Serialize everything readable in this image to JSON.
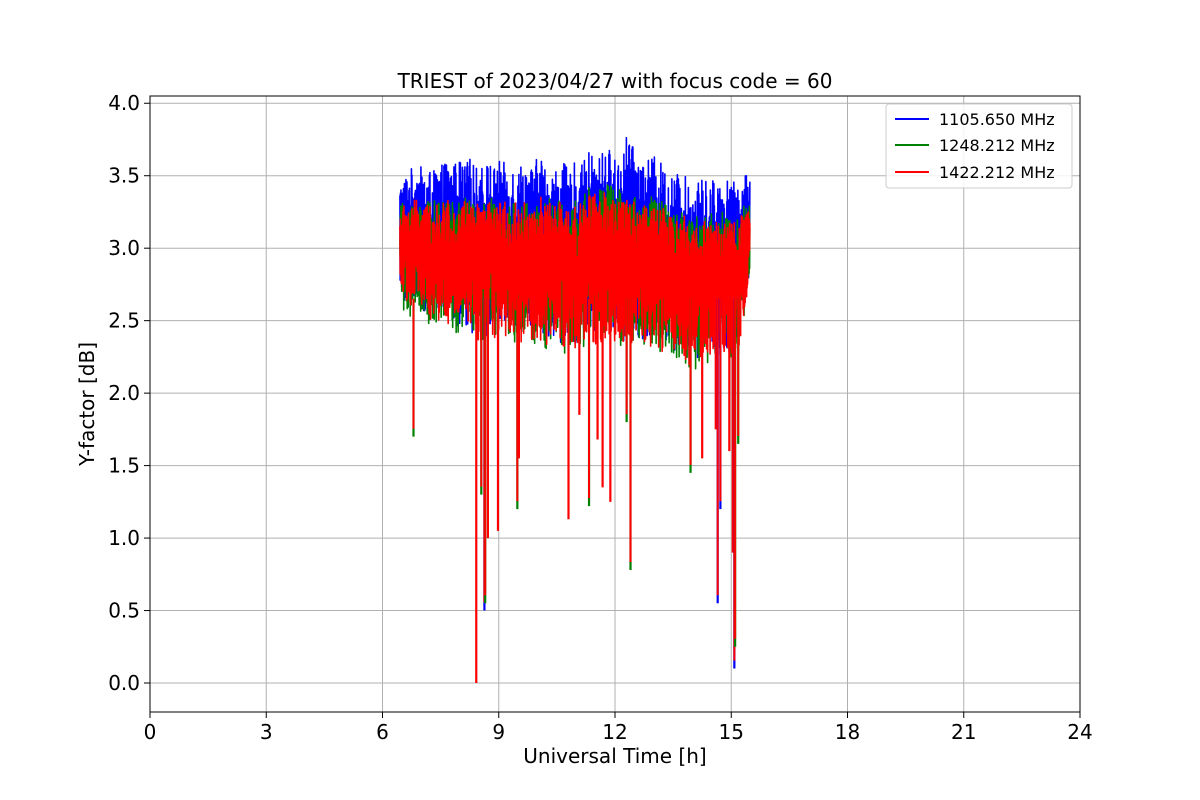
{
  "chart_data": {
    "type": "line",
    "title": "TRIEST of 2023/04/27 with focus code = 60",
    "xlabel": "Universal Time [h]",
    "ylabel": "Y-factor [dB]",
    "xlim": [
      0,
      24
    ],
    "ylim": [
      -0.2,
      4.05
    ],
    "xticks": [
      0,
      3,
      6,
      9,
      12,
      15,
      18,
      21,
      24
    ],
    "xtick_labels": [
      "0",
      "3",
      "6",
      "9",
      "12",
      "15",
      "18",
      "21",
      "24"
    ],
    "yticks": [
      0.0,
      0.5,
      1.0,
      1.5,
      2.0,
      2.5,
      3.0,
      3.5,
      4.0
    ],
    "ytick_labels": [
      "0.0",
      "0.5",
      "1.0",
      "1.5",
      "2.0",
      "2.5",
      "3.0",
      "3.5",
      "4.0"
    ],
    "grid": true,
    "legend_position": "top-right",
    "series": [
      {
        "name": "1105.650 MHz",
        "color": "#0000ff",
        "x": [
          6.45,
          6.55,
          6.62,
          6.7,
          6.78,
          6.84,
          6.92,
          7.0,
          7.1,
          7.2,
          7.3,
          7.4,
          7.5,
          7.6,
          7.7,
          7.8,
          7.9,
          8.0,
          8.1,
          8.2,
          8.3,
          8.38,
          8.44,
          8.5,
          8.58,
          8.64,
          8.7,
          8.8,
          8.88,
          8.96,
          9.04,
          9.12,
          9.2,
          9.3,
          9.4,
          9.46,
          9.52,
          9.6,
          9.7,
          9.8,
          9.9,
          10.0,
          10.1,
          10.16,
          10.22,
          10.3,
          10.4,
          10.5,
          10.6,
          10.7,
          10.8,
          10.86,
          10.92,
          11.0,
          11.1,
          11.2,
          11.3,
          11.36,
          11.42,
          11.5,
          11.6,
          11.7,
          11.8,
          11.9,
          12.0,
          12.1,
          12.2,
          12.3,
          12.38,
          12.42,
          12.5,
          12.6,
          12.7,
          12.8,
          12.9,
          13.0,
          13.1,
          13.2,
          13.3,
          13.4,
          13.5,
          13.6,
          13.7,
          13.8,
          13.9,
          14.0,
          14.1,
          14.2,
          14.3,
          14.4,
          14.5,
          14.6,
          14.66,
          14.72,
          14.8,
          14.9,
          15.0,
          15.06,
          15.1,
          15.16,
          15.24,
          15.32,
          15.4,
          15.48
        ],
        "y_high": [
          3.45,
          3.5,
          3.52,
          3.55,
          3.56,
          3.54,
          3.58,
          3.56,
          3.53,
          3.55,
          3.52,
          3.57,
          3.56,
          3.6,
          3.62,
          3.58,
          3.6,
          3.62,
          3.57,
          3.61,
          3.63,
          3.58,
          3.55,
          3.6,
          3.58,
          3.56,
          3.6,
          3.62,
          3.56,
          3.58,
          3.62,
          3.6,
          3.55,
          3.58,
          3.6,
          3.56,
          3.58,
          3.6,
          3.62,
          3.56,
          3.58,
          3.63,
          3.65,
          3.6,
          3.55,
          3.58,
          3.54,
          3.57,
          3.6,
          3.58,
          3.55,
          3.52,
          3.58,
          3.6,
          3.56,
          3.6,
          3.65,
          3.7,
          3.66,
          3.62,
          3.64,
          3.68,
          3.72,
          3.66,
          3.62,
          3.65,
          3.7,
          3.78,
          3.86,
          3.72,
          3.68,
          3.7,
          3.64,
          3.6,
          3.62,
          3.64,
          3.58,
          3.6,
          3.55,
          3.53,
          3.5,
          3.52,
          3.55,
          3.5,
          3.48,
          3.46,
          3.5,
          3.48,
          3.47,
          3.49,
          3.5,
          3.48,
          3.46,
          3.55,
          3.5,
          3.48,
          3.47,
          3.45,
          3.5,
          3.48,
          3.52,
          3.53,
          3.5,
          3.52
        ],
        "y_low": [
          2.7,
          2.6,
          2.65,
          2.55,
          2.6,
          2.62,
          2.58,
          2.6,
          2.55,
          2.48,
          2.55,
          2.52,
          2.5,
          2.55,
          2.48,
          2.5,
          2.45,
          2.48,
          2.5,
          2.45,
          2.42,
          2.4,
          2.38,
          2.35,
          2.42,
          2.38,
          2.4,
          2.45,
          2.4,
          2.38,
          2.36,
          2.42,
          2.38,
          2.4,
          2.35,
          2.38,
          2.4,
          2.36,
          2.38,
          2.35,
          2.38,
          2.4,
          2.36,
          2.38,
          2.32,
          2.35,
          2.38,
          2.4,
          2.35,
          2.3,
          2.36,
          2.34,
          2.38,
          2.3,
          2.35,
          2.36,
          2.38,
          2.4,
          2.35,
          2.32,
          2.38,
          2.36,
          2.4,
          2.38,
          2.36,
          2.4,
          2.35,
          2.38,
          2.42,
          2.36,
          2.4,
          2.38,
          2.35,
          2.36,
          2.32,
          2.38,
          2.35,
          2.3,
          2.34,
          2.36,
          2.3,
          2.28,
          2.3,
          2.25,
          2.2,
          2.18,
          2.22,
          2.25,
          2.3,
          2.25,
          2.28,
          2.3,
          2.28,
          2.25,
          2.3,
          2.28,
          2.25,
          2.3,
          2.28,
          2.25,
          2.4,
          2.55,
          2.62,
          2.9
        ]
      },
      {
        "name": "1248.212 MHz",
        "color": "#008000",
        "x": [
          6.45,
          6.55,
          6.62,
          6.7,
          6.78,
          6.84,
          6.92,
          7.0,
          7.1,
          7.2,
          7.3,
          7.4,
          7.5,
          7.6,
          7.7,
          7.8,
          7.9,
          8.0,
          8.1,
          8.2,
          8.3,
          8.38,
          8.44,
          8.5,
          8.58,
          8.64,
          8.7,
          8.8,
          8.88,
          8.96,
          9.04,
          9.12,
          9.2,
          9.3,
          9.4,
          9.46,
          9.52,
          9.6,
          9.7,
          9.8,
          9.9,
          10.0,
          10.1,
          10.16,
          10.22,
          10.3,
          10.4,
          10.5,
          10.6,
          10.7,
          10.8,
          10.86,
          10.92,
          11.0,
          11.1,
          11.2,
          11.3,
          11.36,
          11.42,
          11.5,
          11.6,
          11.7,
          11.8,
          11.9,
          12.0,
          12.1,
          12.2,
          12.3,
          12.38,
          12.42,
          12.5,
          12.6,
          12.7,
          12.8,
          12.9,
          13.0,
          13.1,
          13.2,
          13.3,
          13.4,
          13.5,
          13.6,
          13.7,
          13.8,
          13.9,
          14.0,
          14.1,
          14.2,
          14.3,
          14.4,
          14.5,
          14.6,
          14.66,
          14.72,
          14.8,
          14.9,
          15.0,
          15.06,
          15.1,
          15.16,
          15.24,
          15.32,
          15.4,
          15.48
        ],
        "y_high": [
          3.3,
          3.32,
          3.35,
          3.3,
          3.33,
          3.36,
          3.34,
          3.32,
          3.3,
          3.33,
          3.35,
          3.32,
          3.3,
          3.34,
          3.36,
          3.32,
          3.3,
          3.34,
          3.38,
          3.35,
          3.32,
          3.3,
          3.34,
          3.36,
          3.33,
          3.3,
          3.32,
          3.35,
          3.33,
          3.3,
          3.34,
          3.36,
          3.32,
          3.3,
          3.33,
          3.36,
          3.34,
          3.32,
          3.35,
          3.33,
          3.3,
          3.36,
          3.4,
          3.35,
          3.32,
          3.36,
          3.3,
          3.33,
          3.35,
          3.32,
          3.3,
          3.28,
          3.32,
          3.35,
          3.33,
          3.36,
          3.42,
          3.48,
          3.44,
          3.4,
          3.42,
          3.45,
          3.5,
          3.44,
          3.4,
          3.42,
          3.46,
          3.4,
          3.38,
          3.36,
          3.38,
          3.4,
          3.35,
          3.33,
          3.35,
          3.36,
          3.32,
          3.34,
          3.3,
          3.28,
          3.25,
          3.28,
          3.3,
          3.26,
          3.24,
          3.22,
          3.26,
          3.24,
          3.22,
          3.25,
          3.26,
          3.24,
          3.22,
          3.3,
          3.26,
          3.24,
          3.22,
          3.2,
          3.26,
          3.24,
          3.28,
          3.3,
          3.28,
          3.3
        ],
        "y_low": [
          2.65,
          2.55,
          2.6,
          2.5,
          2.55,
          2.58,
          2.53,
          2.55,
          2.5,
          2.43,
          2.5,
          2.47,
          2.45,
          2.5,
          2.43,
          2.45,
          2.4,
          2.43,
          2.45,
          2.4,
          2.37,
          2.35,
          2.33,
          2.3,
          2.37,
          2.33,
          2.35,
          2.4,
          2.35,
          2.33,
          2.31,
          2.37,
          2.33,
          2.35,
          2.3,
          2.33,
          2.35,
          2.31,
          2.33,
          2.3,
          2.33,
          2.35,
          2.31,
          2.33,
          2.27,
          2.3,
          2.33,
          2.35,
          2.3,
          2.25,
          2.31,
          2.29,
          2.33,
          2.25,
          2.3,
          2.31,
          2.33,
          2.35,
          2.3,
          2.27,
          2.33,
          2.31,
          2.35,
          2.33,
          2.31,
          2.35,
          2.3,
          2.33,
          2.37,
          2.31,
          2.35,
          2.33,
          2.3,
          2.31,
          2.27,
          2.33,
          2.3,
          2.25,
          2.29,
          2.31,
          2.25,
          2.23,
          2.25,
          2.2,
          2.15,
          2.13,
          2.17,
          2.2,
          2.25,
          2.2,
          2.23,
          2.25,
          2.23,
          2.2,
          2.25,
          2.23,
          2.2,
          2.25,
          2.23,
          2.2,
          2.35,
          2.5,
          2.57,
          2.85
        ]
      },
      {
        "name": "1422.212 MHz",
        "color": "#ff0000",
        "x": [
          6.45,
          6.55,
          6.62,
          6.7,
          6.78,
          6.84,
          6.92,
          7.0,
          7.1,
          7.2,
          7.3,
          7.4,
          7.5,
          7.6,
          7.7,
          7.8,
          7.9,
          8.0,
          8.1,
          8.2,
          8.3,
          8.38,
          8.44,
          8.5,
          8.58,
          8.64,
          8.7,
          8.8,
          8.88,
          8.96,
          9.04,
          9.12,
          9.2,
          9.3,
          9.4,
          9.46,
          9.52,
          9.6,
          9.7,
          9.8,
          9.9,
          10.0,
          10.1,
          10.16,
          10.22,
          10.3,
          10.4,
          10.5,
          10.6,
          10.7,
          10.8,
          10.86,
          10.92,
          11.0,
          11.1,
          11.2,
          11.3,
          11.36,
          11.42,
          11.5,
          11.6,
          11.7,
          11.8,
          11.9,
          12.0,
          12.1,
          12.2,
          12.3,
          12.38,
          12.42,
          12.5,
          12.6,
          12.7,
          12.8,
          12.9,
          13.0,
          13.1,
          13.2,
          13.3,
          13.4,
          13.5,
          13.6,
          13.7,
          13.8,
          13.9,
          14.0,
          14.1,
          14.2,
          14.3,
          14.4,
          14.5,
          14.6,
          14.66,
          14.72,
          14.8,
          14.9,
          15.0,
          15.06,
          15.1,
          15.16,
          15.24,
          15.32,
          15.4,
          15.48
        ],
        "y_high": [
          3.28,
          3.3,
          3.32,
          3.28,
          3.31,
          3.34,
          3.32,
          3.3,
          3.28,
          3.31,
          3.33,
          3.3,
          3.28,
          3.32,
          3.34,
          3.3,
          3.28,
          3.32,
          3.35,
          3.33,
          3.3,
          3.28,
          3.32,
          3.34,
          3.31,
          3.28,
          3.3,
          3.33,
          3.31,
          3.28,
          3.32,
          3.34,
          3.3,
          3.28,
          3.31,
          3.34,
          3.32,
          3.3,
          3.33,
          3.31,
          3.28,
          3.34,
          3.36,
          3.33,
          3.3,
          3.34,
          3.28,
          3.31,
          3.33,
          3.3,
          3.28,
          3.26,
          3.3,
          3.33,
          3.31,
          3.34,
          3.38,
          3.42,
          3.4,
          3.37,
          3.38,
          3.4,
          3.36,
          3.34,
          3.32,
          3.34,
          3.37,
          3.35,
          3.33,
          3.31,
          3.33,
          3.35,
          3.31,
          3.29,
          3.31,
          3.32,
          3.28,
          3.3,
          3.26,
          3.24,
          3.21,
          3.24,
          3.26,
          3.22,
          3.2,
          3.18,
          3.22,
          3.2,
          3.18,
          3.21,
          3.22,
          3.2,
          3.18,
          3.26,
          3.22,
          3.2,
          3.18,
          3.16,
          3.22,
          3.2,
          3.24,
          3.26,
          3.24,
          3.26
        ],
        "y_low": [
          2.68,
          2.58,
          2.63,
          2.53,
          2.58,
          2.61,
          2.56,
          2.58,
          2.53,
          2.46,
          2.53,
          2.5,
          2.48,
          2.53,
          2.46,
          2.48,
          2.43,
          2.46,
          2.48,
          2.43,
          2.4,
          2.38,
          2.36,
          2.33,
          2.4,
          2.36,
          2.38,
          2.43,
          2.38,
          2.36,
          2.34,
          2.4,
          2.36,
          2.38,
          2.33,
          2.36,
          2.38,
          2.34,
          2.36,
          2.33,
          2.36,
          2.38,
          2.34,
          2.36,
          2.3,
          2.33,
          2.36,
          2.38,
          2.33,
          2.28,
          2.34,
          2.32,
          2.36,
          2.28,
          2.33,
          2.34,
          2.36,
          2.38,
          2.33,
          2.3,
          2.36,
          2.34,
          2.38,
          2.36,
          2.34,
          2.38,
          2.33,
          2.36,
          2.4,
          2.34,
          2.38,
          2.36,
          2.33,
          2.34,
          2.3,
          2.36,
          2.33,
          2.28,
          2.32,
          2.34,
          2.28,
          2.26,
          2.28,
          2.23,
          2.18,
          2.16,
          2.2,
          2.23,
          2.28,
          2.23,
          2.26,
          2.28,
          2.26,
          2.23,
          2.28,
          2.26,
          2.23,
          2.28,
          2.26,
          2.23,
          2.38,
          2.53,
          2.6,
          2.88
        ]
      }
    ],
    "dips": [
      {
        "x": 6.8,
        "y": 1.7,
        "series": "1248.212 MHz"
      },
      {
        "x": 8.42,
        "y": 0.0,
        "series": "1422.212 MHz"
      },
      {
        "x": 8.55,
        "y": 1.3,
        "series": "1248.212 MHz"
      },
      {
        "x": 8.63,
        "y": 0.5,
        "series": "1105.650 MHz"
      },
      {
        "x": 8.65,
        "y": 0.55,
        "series": "1248.212 MHz"
      },
      {
        "x": 8.72,
        "y": 1.0,
        "series": "1422.212 MHz"
      },
      {
        "x": 8.98,
        "y": 1.05,
        "series": "1422.212 MHz"
      },
      {
        "x": 9.48,
        "y": 1.2,
        "series": "1248.212 MHz"
      },
      {
        "x": 9.52,
        "y": 1.55,
        "series": "1422.212 MHz"
      },
      {
        "x": 10.8,
        "y": 1.13,
        "series": "1422.212 MHz"
      },
      {
        "x": 11.08,
        "y": 1.85,
        "series": "1422.212 MHz"
      },
      {
        "x": 11.33,
        "y": 1.22,
        "series": "1248.212 MHz"
      },
      {
        "x": 11.55,
        "y": 1.68,
        "series": "1422.212 MHz"
      },
      {
        "x": 11.68,
        "y": 1.35,
        "series": "1422.212 MHz"
      },
      {
        "x": 11.88,
        "y": 1.25,
        "series": "1422.212 MHz"
      },
      {
        "x": 12.3,
        "y": 1.8,
        "series": "1248.212 MHz"
      },
      {
        "x": 12.4,
        "y": 0.78,
        "series": "1248.212 MHz"
      },
      {
        "x": 13.95,
        "y": 1.45,
        "series": "1248.212 MHz"
      },
      {
        "x": 14.25,
        "y": 1.55,
        "series": "1422.212 MHz"
      },
      {
        "x": 14.6,
        "y": 1.75,
        "series": "1422.212 MHz"
      },
      {
        "x": 14.65,
        "y": 0.55,
        "series": "1105.650 MHz"
      },
      {
        "x": 14.72,
        "y": 1.2,
        "series": "1105.650 MHz"
      },
      {
        "x": 14.95,
        "y": 1.6,
        "series": "1422.212 MHz"
      },
      {
        "x": 15.04,
        "y": 0.9,
        "series": "1422.212 MHz"
      },
      {
        "x": 15.08,
        "y": 0.1,
        "series": "1105.650 MHz"
      },
      {
        "x": 15.1,
        "y": 0.25,
        "series": "1248.212 MHz"
      },
      {
        "x": 15.18,
        "y": 1.65,
        "series": "1248.212 MHz"
      }
    ]
  }
}
